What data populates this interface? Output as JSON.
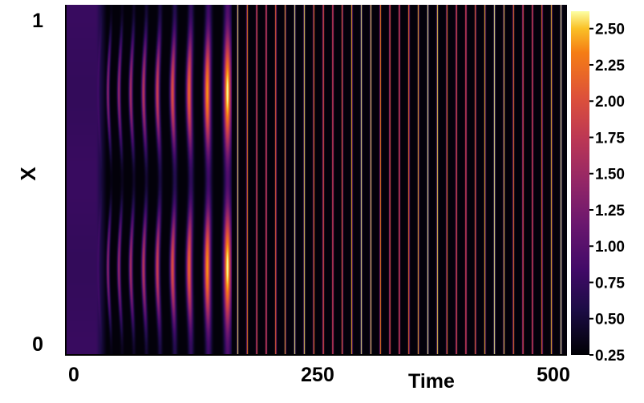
{
  "chart_data": {
    "type": "heatmap",
    "title": "",
    "xlabel": "Time",
    "ylabel": "X",
    "xlim": [
      0,
      500
    ],
    "ylim": [
      0,
      1
    ],
    "x_ticks": [
      "0",
      "250",
      "500"
    ],
    "y_ticks": [
      "0",
      "1"
    ],
    "colormap": "inferno",
    "colorbar": {
      "min": 0.25,
      "max": 2.62,
      "ticks": [
        "0.25",
        "0.50",
        "0.75",
        "1.00",
        "1.25",
        "1.50",
        "1.75",
        "2.00",
        "2.25",
        "2.50"
      ],
      "tick_values": [
        0.25,
        0.5,
        0.75,
        1.0,
        1.25,
        1.5,
        1.75,
        2.0,
        2.25,
        2.5
      ]
    },
    "background_level": 0.75,
    "transient": {
      "onset_time": 30,
      "low_level": 0.28,
      "low_bands_x": [
        0.0,
        0.5,
        1.0
      ],
      "high_bands_x": [
        0.25,
        0.75
      ],
      "stripe_period_start": 8.5,
      "stripe_period_end": 12.5,
      "stripe_peak_start": 1.5,
      "stripe_peak_end": 2.3
    },
    "steady_state": {
      "start_time": 165,
      "stripe_period": 9.5,
      "stripe_peak": 2.6,
      "stripe_trough": 0.28,
      "description_value": "spatially uniform oscillation"
    }
  }
}
